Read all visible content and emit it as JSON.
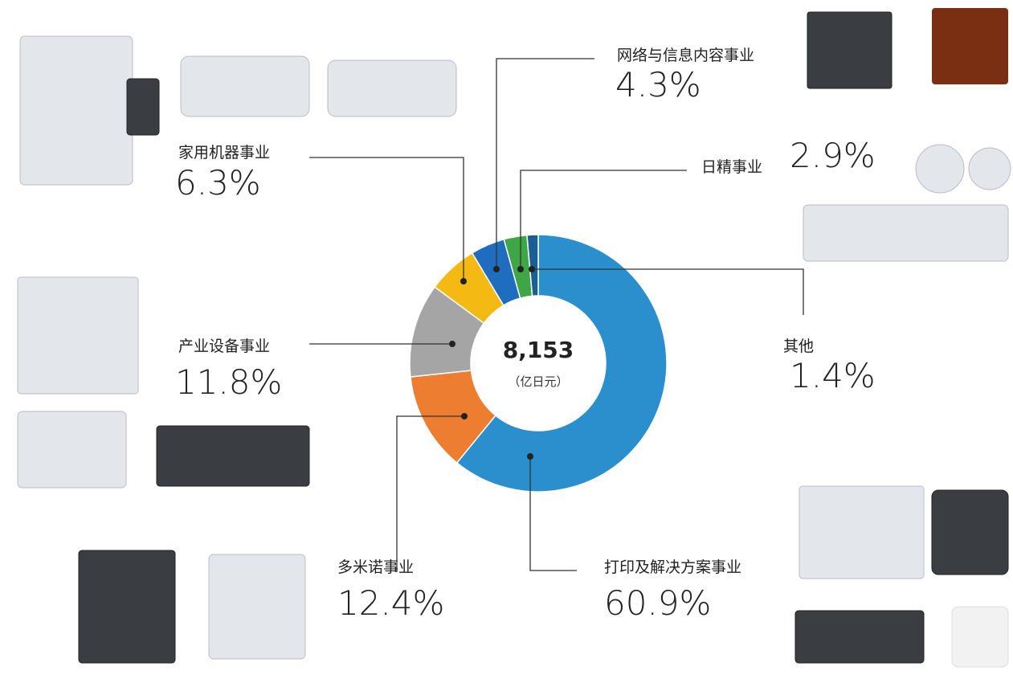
{
  "chart_data": {
    "type": "donut",
    "total": "8,153",
    "unit": "（亿日元）",
    "categories": [
      "打印及解决方案事业",
      "多米诺事业",
      "产业设备事业",
      "家用机器事业",
      "网络与信息内容事业",
      "日精事业",
      "其他"
    ],
    "values": [
      60.9,
      12.4,
      11.8,
      6.3,
      4.3,
      2.9,
      1.4
    ],
    "value_labels": [
      "60.9%",
      "12.4%",
      "11.8%",
      "6.3%",
      "4.3%",
      "2.9%",
      "1.4%"
    ],
    "colors": [
      "#2a8fcc",
      "#ed7d31",
      "#a5a5a5",
      "#f5b914",
      "#1f6dbf",
      "#3fa648",
      "#1a5f94"
    ]
  }
}
